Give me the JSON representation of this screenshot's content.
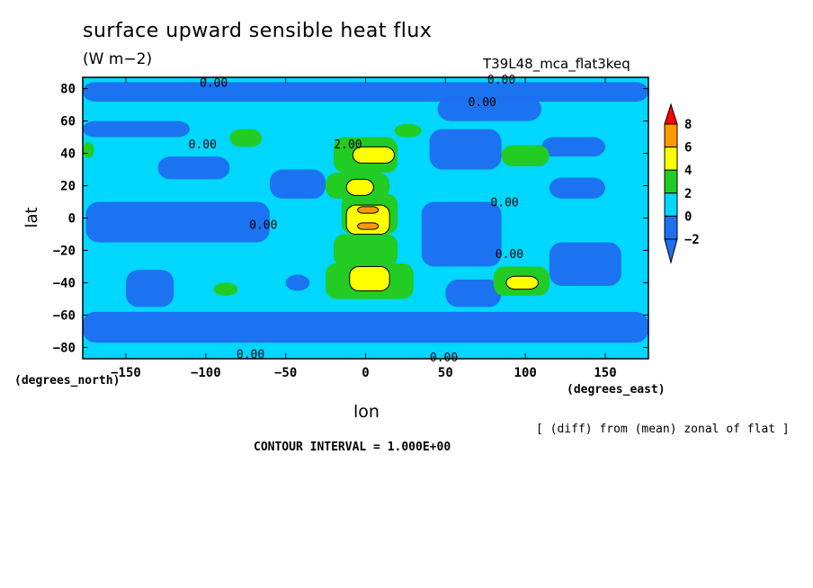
{
  "chart_data": {
    "type": "heatmap",
    "title": "surface upward sensible heat flux",
    "units": "(W m−2)",
    "run_label": "T39L48_mca_flat3keq",
    "xlabel": "lon",
    "ylabel": "lat",
    "x_unit_label": "(degrees_east)",
    "y_unit_label": "(degrees_north)",
    "note": "[ (diff) from (mean) zonal of flat ]",
    "contour_interval_label": "CONTOUR INTERVAL = 1.000E+00",
    "xlim": [
      -177,
      177
    ],
    "ylim": [
      -87,
      87
    ],
    "x_ticks": [
      -150,
      -100,
      -50,
      0,
      50,
      100,
      150
    ],
    "y_ticks": [
      80,
      60,
      40,
      20,
      0,
      -20,
      -40,
      -60,
      -80
    ],
    "x_tick_labels": [
      "−150",
      "−100",
      "−50",
      "0",
      "50",
      "100",
      "150"
    ],
    "y_tick_labels": [
      "80",
      "60",
      "40",
      "20",
      "0",
      "−20",
      "−40",
      "−60",
      "−80"
    ],
    "colorbar": {
      "levels": [
        -2,
        0,
        2,
        4,
        6,
        8
      ],
      "labels": [
        "−2",
        "0",
        "2",
        "4",
        "6",
        "8"
      ],
      "colors": [
        "#1e6ef0",
        "#00d7ff",
        "#22cc22",
        "#ffff00",
        "#ff9900",
        "#ff0000"
      ],
      "below_color": "#1e6ef0",
      "above_color": "#ff0000"
    },
    "contour_labels": [
      {
        "text": "0.00",
        "lon": -95,
        "lat": 84
      },
      {
        "text": "0.00",
        "lon": 85,
        "lat": 86
      },
      {
        "text": "0.00",
        "lon": 73,
        "lat": 72
      },
      {
        "text": "0.00",
        "lon": -102,
        "lat": 46
      },
      {
        "text": "2.00",
        "lon": -11,
        "lat": 46
      },
      {
        "text": "0.00",
        "lon": 87,
        "lat": 10
      },
      {
        "text": "0.00",
        "lon": -64,
        "lat": -4
      },
      {
        "text": "0.00",
        "lon": 90,
        "lat": -22
      },
      {
        "text": "0.00",
        "lon": -72,
        "lat": -84
      },
      {
        "text": "0.00",
        "lon": 49,
        "lat": -86
      }
    ],
    "features": [
      {
        "region": "central equatorial and mid-latitude band",
        "lon": [
          -20,
          25
        ],
        "lat": [
          -50,
          50
        ],
        "value_max": 7
      },
      {
        "region": "peak near equator",
        "lon": 0,
        "lat": 0,
        "value": 7
      },
      {
        "region": "peak north",
        "lon": 5,
        "lat": 40,
        "value": 6
      },
      {
        "region": "peak south",
        "lon": 0,
        "lat": -37,
        "value": 5
      },
      {
        "region": "east pacific south",
        "lon": 100,
        "lat": -40,
        "value": 5
      },
      {
        "region": "east north",
        "lon": 100,
        "lat": 40,
        "value": 2
      },
      {
        "region": "west north",
        "lon": -75,
        "lat": 50,
        "value": 2
      },
      {
        "region": "asia north",
        "lon": 60,
        "lat": 45,
        "value": -4
      },
      {
        "region": "pacific south",
        "lon": 130,
        "lat": -30,
        "value": -3
      }
    ]
  }
}
